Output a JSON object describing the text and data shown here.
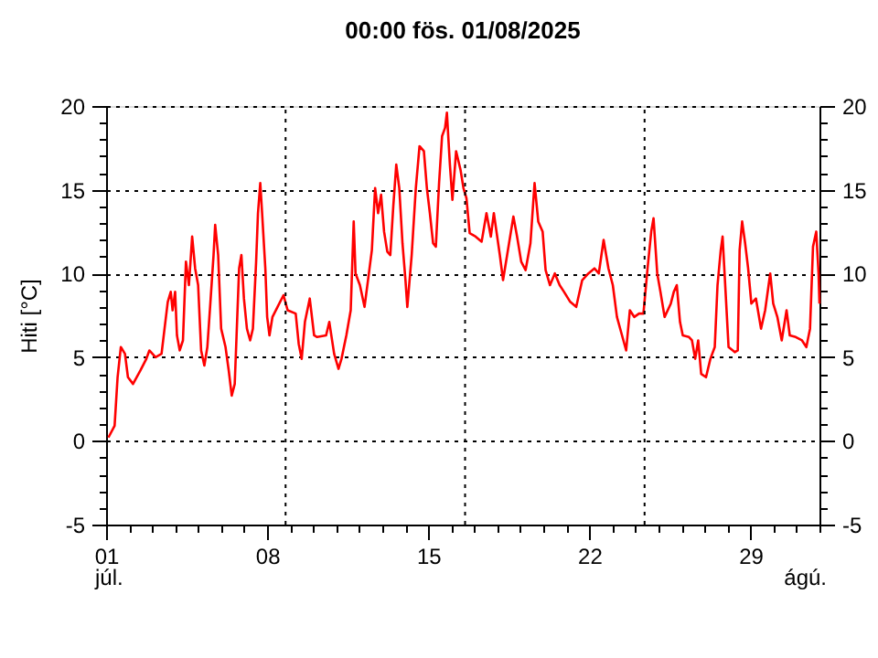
{
  "chart_data": {
    "type": "line",
    "title": "00:00   fös.  01/08/2025",
    "ylabel": "Hiti [°C]",
    "annotations": [
      "júl.",
      "ágú."
    ],
    "xlim": [
      1,
      32
    ],
    "xticks": [
      {
        "value": 1,
        "label": "01"
      },
      {
        "value": 2,
        "label": null
      },
      {
        "value": 3,
        "label": null
      },
      {
        "value": 4,
        "label": null
      },
      {
        "value": 5,
        "label": null
      },
      {
        "value": 6,
        "label": null
      },
      {
        "value": 7,
        "label": null
      },
      {
        "value": 8,
        "label": "08"
      },
      {
        "value": 9,
        "label": null
      },
      {
        "value": 10,
        "label": null
      },
      {
        "value": 11,
        "label": null
      },
      {
        "value": 12,
        "label": null
      },
      {
        "value": 13,
        "label": null
      },
      {
        "value": 14,
        "label": null
      },
      {
        "value": 15,
        "label": "15"
      },
      {
        "value": 16,
        "label": null
      },
      {
        "value": 17,
        "label": null
      },
      {
        "value": 18,
        "label": null
      },
      {
        "value": 19,
        "label": null
      },
      {
        "value": 20,
        "label": null
      },
      {
        "value": 21,
        "label": null
      },
      {
        "value": 22,
        "label": "22"
      },
      {
        "value": 23,
        "label": null
      },
      {
        "value": 24,
        "label": null
      },
      {
        "value": 25,
        "label": null
      },
      {
        "value": 26,
        "label": null
      },
      {
        "value": 27,
        "label": null
      },
      {
        "value": 28,
        "label": null
      },
      {
        "value": 29,
        "label": "29"
      },
      {
        "value": 30,
        "label": null
      },
      {
        "value": 31,
        "label": null
      },
      {
        "value": 32,
        "label": null
      }
    ],
    "ylim": [
      -5,
      20
    ],
    "yticks": [
      -5,
      {
        "value": -4,
        "label": null
      },
      {
        "value": -3,
        "label": null
      },
      {
        "value": -2,
        "label": null
      },
      {
        "value": -1,
        "label": null
      },
      0,
      {
        "value": 1,
        "label": null
      },
      {
        "value": 2,
        "label": null
      },
      {
        "value": 3,
        "label": null
      },
      {
        "value": 4,
        "label": null
      },
      5,
      {
        "value": 6,
        "label": null
      },
      {
        "value": 7,
        "label": null
      },
      {
        "value": 8,
        "label": null
      },
      {
        "value": 9,
        "label": null
      },
      10,
      {
        "value": 11,
        "label": null
      },
      {
        "value": 12,
        "label": null
      },
      {
        "value": 13,
        "label": null
      },
      {
        "value": 14,
        "label": null
      },
      15,
      {
        "value": 16,
        "label": null
      },
      {
        "value": 17,
        "label": null
      },
      {
        "value": 18,
        "label": null
      },
      {
        "value": 19,
        "label": null
      },
      20
    ],
    "y2lim": [
      -5,
      20
    ],
    "y2ticks": [
      -5,
      {
        "value": -4,
        "label": null
      },
      {
        "value": -3,
        "label": null
      },
      {
        "value": -2,
        "label": null
      },
      {
        "value": -1,
        "label": null
      },
      0,
      {
        "value": 1,
        "label": null
      },
      {
        "value": 2,
        "label": null
      },
      {
        "value": 3,
        "label": null
      },
      {
        "value": 4,
        "label": null
      },
      5,
      {
        "value": 6,
        "label": null
      },
      {
        "value": 7,
        "label": null
      },
      {
        "value": 8,
        "label": null
      },
      {
        "value": 9,
        "label": null
      },
      10,
      {
        "value": 11,
        "label": null
      },
      {
        "value": 12,
        "label": null
      },
      {
        "value": 13,
        "label": null
      },
      {
        "value": 14,
        "label": null
      },
      15,
      {
        "value": 16,
        "label": null
      },
      {
        "value": 17,
        "label": null
      },
      {
        "value": 18,
        "label": null
      },
      {
        "value": 19,
        "label": null
      },
      20
    ],
    "grid": "y",
    "line_style": "solid",
    "marker": "none",
    "ref_lines": [
      {
        "axis": "x",
        "value": 8.8,
        "color": "#000000",
        "line_style": "dotted"
      },
      {
        "axis": "x",
        "value": 16.6,
        "color": "#000000",
        "line_style": "dotted"
      },
      {
        "axis": "x",
        "value": 24.4,
        "color": "#000000",
        "line_style": "dotted"
      }
    ],
    "series": [
      {
        "color": "#ff0000",
        "x": [
          1.1,
          1.37,
          1.5,
          1.64,
          1.82,
          1.95,
          2.17,
          2.49,
          2.75,
          2.88,
          3.15,
          3.41,
          3.54,
          3.68,
          3.81,
          3.89,
          4.0,
          4.08,
          4.2,
          4.34,
          4.47,
          4.6,
          4.74,
          4.87,
          5.0,
          5.13,
          5.27,
          5.4,
          5.53,
          5.67,
          5.74,
          5.87,
          6.0,
          6.19,
          6.33,
          6.46,
          6.59,
          6.67,
          6.78,
          6.88,
          6.99,
          7.12,
          7.26,
          7.38,
          7.52,
          7.6,
          7.7,
          7.78,
          7.92,
          8.0,
          8.1,
          8.23,
          8.45,
          8.71,
          8.89,
          9.24,
          9.37,
          9.5,
          9.64,
          9.85,
          10.04,
          10.17,
          10.56,
          10.7,
          10.91,
          11.1,
          11.23,
          11.44,
          11.63,
          11.76,
          11.84,
          12.03,
          12.23,
          12.42,
          12.55,
          12.69,
          12.82,
          12.95,
          13.08,
          13.22,
          13.35,
          13.48,
          13.61,
          13.74,
          13.88,
          14.01,
          14.09,
          14.28,
          14.46,
          14.62,
          14.81,
          14.94,
          15.07,
          15.21,
          15.33,
          15.47,
          15.6,
          15.73,
          15.81,
          15.94,
          16.05,
          16.21,
          16.4,
          16.53,
          16.66,
          16.8,
          17.06,
          17.32,
          17.53,
          17.72,
          17.85,
          18.11,
          18.25,
          18.51,
          18.7,
          18.86,
          19.04,
          19.23,
          19.44,
          19.62,
          19.78,
          19.97,
          20.1,
          20.29,
          20.5,
          20.71,
          20.9,
          21.17,
          21.43,
          21.69,
          21.96,
          22.22,
          22.41,
          22.62,
          22.83,
          23.02,
          23.2,
          23.42,
          23.6,
          23.76,
          23.95,
          24.16,
          24.35,
          24.53,
          24.69,
          24.79,
          24.95,
          25.09,
          25.27,
          25.54,
          25.67,
          25.8,
          25.94,
          26.06,
          26.33,
          26.46,
          26.6,
          26.73,
          26.86,
          27.07,
          27.26,
          27.45,
          27.57,
          27.71,
          27.79,
          27.92,
          28.05,
          28.32,
          28.45,
          28.53,
          28.64,
          28.77,
          28.9,
          29.04,
          29.24,
          29.46,
          29.64,
          29.86,
          29.99,
          30.17,
          30.36,
          30.57,
          30.71,
          30.97,
          31.24,
          31.43,
          31.59,
          31.72,
          31.86,
          31.96,
          32.0
        ],
        "values": [
          0.2,
          0.9,
          3.8,
          5.6,
          5.2,
          3.8,
          3.4,
          4.2,
          4.9,
          5.4,
          5.0,
          5.2,
          6.7,
          8.3,
          8.9,
          7.8,
          8.9,
          6.3,
          5.4,
          6.0,
          10.7,
          9.3,
          12.2,
          10.3,
          9.3,
          5.4,
          4.5,
          5.6,
          8.2,
          11.1,
          12.9,
          11.1,
          6.7,
          5.6,
          4.2,
          2.7,
          3.4,
          6.3,
          10.3,
          11.1,
          8.5,
          6.7,
          6.0,
          6.7,
          10.7,
          13.6,
          15.4,
          13.6,
          10.3,
          7.4,
          6.3,
          7.4,
          8.0,
          8.7,
          7.8,
          7.6,
          5.8,
          4.9,
          7.1,
          8.5,
          6.3,
          6.2,
          6.3,
          7.1,
          5.2,
          4.3,
          4.9,
          6.3,
          7.8,
          13.1,
          10.0,
          9.3,
          8.0,
          10.0,
          11.4,
          15.1,
          13.6,
          14.7,
          12.5,
          11.3,
          11.1,
          14.0,
          16.5,
          15.1,
          11.8,
          9.6,
          8.0,
          11.1,
          15.1,
          17.6,
          17.3,
          15.1,
          13.6,
          11.8,
          11.6,
          15.4,
          18.2,
          18.7,
          19.6,
          16.5,
          14.4,
          17.3,
          16.2,
          15.1,
          14.5,
          12.4,
          12.2,
          11.9,
          13.6,
          12.2,
          13.6,
          11.1,
          9.6,
          11.8,
          13.4,
          12.2,
          10.7,
          10.2,
          11.8,
          15.4,
          13.1,
          12.5,
          10.2,
          9.3,
          10.0,
          9.3,
          8.9,
          8.3,
          8.0,
          9.6,
          10.0,
          10.3,
          10.0,
          12.0,
          10.3,
          9.3,
          7.4,
          6.3,
          5.4,
          7.8,
          7.4,
          7.6,
          7.6,
          10.3,
          12.5,
          13.3,
          10.0,
          8.9,
          7.4,
          8.2,
          8.9,
          9.3,
          7.1,
          6.3,
          6.2,
          6.0,
          4.9,
          6.0,
          4.0,
          3.8,
          4.9,
          5.6,
          9.3,
          11.4,
          12.2,
          8.9,
          5.6,
          5.3,
          5.4,
          11.4,
          13.1,
          11.8,
          10.3,
          8.2,
          8.5,
          6.7,
          7.8,
          10.0,
          8.2,
          7.4,
          6.0,
          7.8,
          6.3,
          6.2,
          6.0,
          5.6,
          6.7,
          11.6,
          12.5,
          10.0,
          8.2
        ]
      }
    ]
  }
}
